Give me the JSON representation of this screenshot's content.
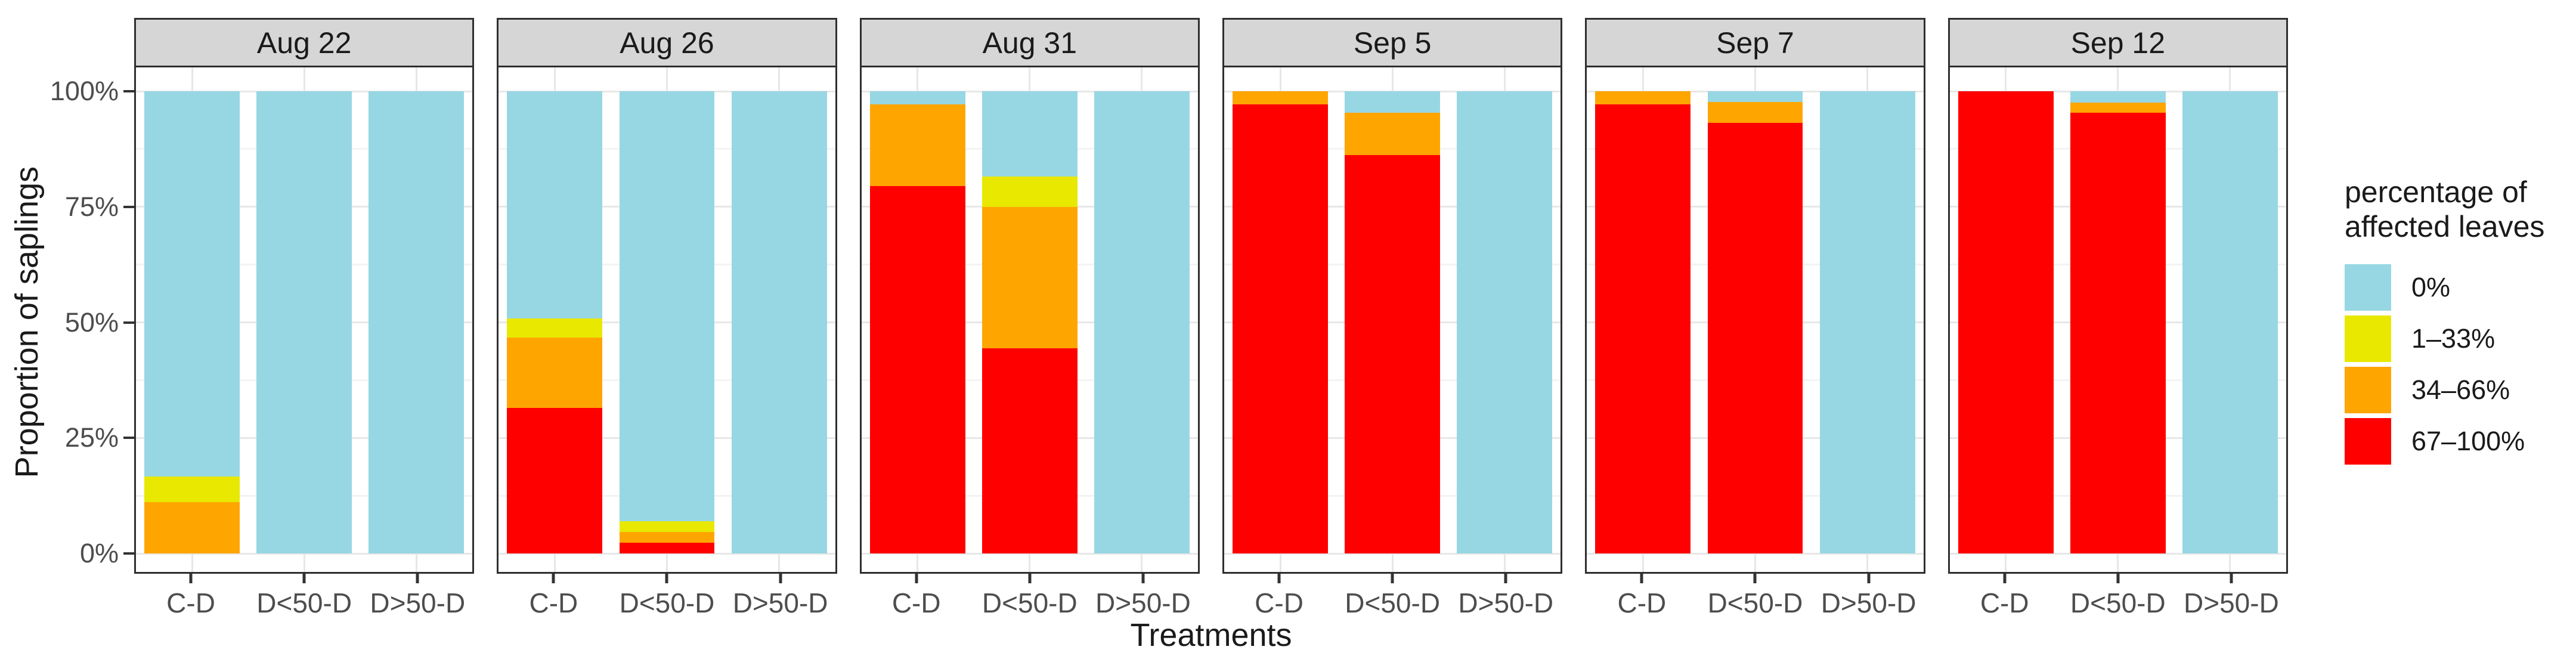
{
  "figure": {
    "y_axis_title": "Proportion of saplings",
    "x_axis_title": "Treatments"
  },
  "chart_data": {
    "type": "bar",
    "subtype": "stacked-percent-faceted",
    "title": "",
    "xlabel": "Treatments",
    "ylabel": "Proportion of saplings",
    "ylim": [
      0,
      100
    ],
    "yticks": [
      {
        "label": "0%",
        "value": 0
      },
      {
        "label": "25%",
        "value": 25
      },
      {
        "label": "50%",
        "value": 50
      },
      {
        "label": "75%",
        "value": 75
      },
      {
        "label": "100%",
        "value": 100
      }
    ],
    "grid": {
      "major": [
        0,
        25,
        50,
        75,
        100
      ],
      "minor": [
        12.5,
        37.5,
        62.5,
        87.5
      ],
      "vertical_major": true
    },
    "legend_position": "right",
    "legend_title": "percentage of\naffected leaves",
    "facets": [
      "Aug 22",
      "Aug 26",
      "Aug 31",
      "Sep 5",
      "Sep 7",
      "Sep 12"
    ],
    "categories": [
      "C-D",
      "D<50-D",
      "D>50-D"
    ],
    "series": [
      {
        "name": "0%",
        "color": "#97d7e3"
      },
      {
        "name": "1–33%",
        "color": "#e8e800"
      },
      {
        "name": "34–66%",
        "color": "#ffa500"
      },
      {
        "name": "67–100%",
        "color": "#fe0000"
      }
    ],
    "stack_order_bottom_to_top": [
      "67–100%",
      "34–66%",
      "1–33%",
      "0%"
    ],
    "facet_values": [
      {
        "facet": "Aug 22",
        "bars": [
          {
            "category": "C-D",
            "segments": [
              83.3,
              5.6,
              11.1,
              0
            ]
          },
          {
            "category": "D<50-D",
            "segments": [
              100,
              0,
              0,
              0
            ]
          },
          {
            "category": "D>50-D",
            "segments": [
              100,
              0,
              0,
              0
            ]
          }
        ]
      },
      {
        "facet": "Aug 26",
        "bars": [
          {
            "category": "C-D",
            "segments": [
              49.2,
              4.1,
              15.2,
              31.5
            ]
          },
          {
            "category": "D<50-D",
            "segments": [
              93.0,
              2.4,
              2.3,
              2.3
            ]
          },
          {
            "category": "D>50-D",
            "segments": [
              100,
              0,
              0,
              0
            ]
          }
        ]
      },
      {
        "facet": "Aug 31",
        "bars": [
          {
            "category": "C-D",
            "segments": [
              2.8,
              0,
              17.7,
              79.5
            ]
          },
          {
            "category": "D<50-D",
            "segments": [
              18.4,
              6.6,
              30.6,
              44.4
            ]
          },
          {
            "category": "D>50-D",
            "segments": [
              100,
              0,
              0,
              0
            ]
          }
        ]
      },
      {
        "facet": "Sep 5",
        "bars": [
          {
            "category": "C-D",
            "segments": [
              0,
              0,
              2.9,
              97.1
            ]
          },
          {
            "category": "D<50-D",
            "segments": [
              4.6,
              0,
              9.2,
              86.2
            ]
          },
          {
            "category": "D>50-D",
            "segments": [
              100,
              0,
              0,
              0
            ]
          }
        ]
      },
      {
        "facet": "Sep 7",
        "bars": [
          {
            "category": "C-D",
            "segments": [
              0,
              0,
              2.8,
              97.2
            ]
          },
          {
            "category": "D<50-D",
            "segments": [
              2.3,
              0,
              4.5,
              93.2
            ]
          },
          {
            "category": "D>50-D",
            "segments": [
              100,
              0,
              0,
              0
            ]
          }
        ]
      },
      {
        "facet": "Sep 12",
        "bars": [
          {
            "category": "C-D",
            "segments": [
              0,
              0,
              0,
              100
            ]
          },
          {
            "category": "D<50-D",
            "segments": [
              2.4,
              0,
              2.3,
              95.3
            ]
          },
          {
            "category": "D>50-D",
            "segments": [
              100,
              0,
              0,
              0
            ]
          }
        ]
      }
    ],
    "colors": {
      "strip_fill": "#d6d6d6",
      "panel_border": "#2f2f2f",
      "grid_major": "#e7e7e7",
      "grid_minor": "#f3f3f3",
      "axis_text": "#4d4d4d",
      "title_text": "#1a1a1a"
    }
  }
}
